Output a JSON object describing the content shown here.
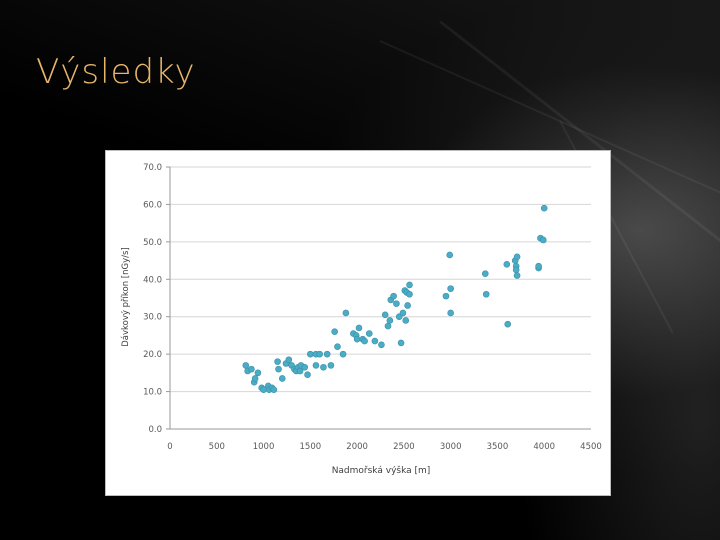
{
  "slide": {
    "title": "Výsledky"
  },
  "chart_data": {
    "type": "scatter",
    "xlabel": "Nadmořská výška [m]",
    "ylabel": "Dávkový příkon [nGy/s]",
    "xlim": [
      0,
      4500
    ],
    "ylim": [
      0,
      70
    ],
    "x_ticks": [
      "0",
      "500",
      "1000",
      "1500",
      "2000",
      "2500",
      "3000",
      "3500",
      "4000",
      "4500"
    ],
    "y_ticks": [
      "0.0",
      "10.0",
      "20.0",
      "30.0",
      "40.0",
      "50.0",
      "60.0",
      "70.0"
    ],
    "grid": "horizontal",
    "marker_color": "#4bacc6",
    "series": [
      {
        "points": [
          [
            810,
            17
          ],
          [
            830,
            15.5
          ],
          [
            870,
            16
          ],
          [
            900,
            12.5
          ],
          [
            910,
            13.5
          ],
          [
            940,
            15
          ],
          [
            980,
            11
          ],
          [
            1000,
            10.5
          ],
          [
            1050,
            11.5
          ],
          [
            1060,
            10.5
          ],
          [
            1090,
            11
          ],
          [
            1110,
            10.5
          ],
          [
            1150,
            18
          ],
          [
            1160,
            16
          ],
          [
            1200,
            13.5
          ],
          [
            1240,
            17.5
          ],
          [
            1270,
            18.5
          ],
          [
            1300,
            17
          ],
          [
            1330,
            16
          ],
          [
            1350,
            15.5
          ],
          [
            1370,
            16.5
          ],
          [
            1390,
            15.5
          ],
          [
            1400,
            17
          ],
          [
            1440,
            16.5
          ],
          [
            1470,
            14.5
          ],
          [
            1500,
            20
          ],
          [
            1560,
            17
          ],
          [
            1560,
            20
          ],
          [
            1600,
            20
          ],
          [
            1640,
            16.5
          ],
          [
            1680,
            20
          ],
          [
            1720,
            17
          ],
          [
            1760,
            26
          ],
          [
            1790,
            22
          ],
          [
            1850,
            20
          ],
          [
            1880,
            31
          ],
          [
            1960,
            25.5
          ],
          [
            1990,
            25
          ],
          [
            2000,
            24
          ],
          [
            2020,
            27
          ],
          [
            2060,
            24
          ],
          [
            2080,
            23.5
          ],
          [
            2130,
            25.5
          ],
          [
            2190,
            23.5
          ],
          [
            2260,
            22.5
          ],
          [
            2300,
            30.5
          ],
          [
            2330,
            27.5
          ],
          [
            2350,
            29
          ],
          [
            2360,
            34.5
          ],
          [
            2390,
            35.5
          ],
          [
            2420,
            33.5
          ],
          [
            2450,
            30
          ],
          [
            2470,
            23
          ],
          [
            2490,
            31
          ],
          [
            2510,
            37
          ],
          [
            2520,
            29
          ],
          [
            2530,
            36.5
          ],
          [
            2540,
            33
          ],
          [
            2560,
            36
          ],
          [
            2560,
            38.5
          ],
          [
            2950,
            35.5
          ],
          [
            2990,
            46.5
          ],
          [
            3000,
            37.5
          ],
          [
            3000,
            31
          ],
          [
            3370,
            41.5
          ],
          [
            3380,
            36
          ],
          [
            3600,
            44
          ],
          [
            3610,
            28
          ],
          [
            3690,
            45
          ],
          [
            3700,
            43.5
          ],
          [
            3700,
            42.5
          ],
          [
            3710,
            46
          ],
          [
            3710,
            41
          ],
          [
            3940,
            43
          ],
          [
            3940,
            43.5
          ],
          [
            3960,
            51
          ],
          [
            3990,
            50.5
          ],
          [
            4000,
            59
          ]
        ]
      }
    ]
  }
}
